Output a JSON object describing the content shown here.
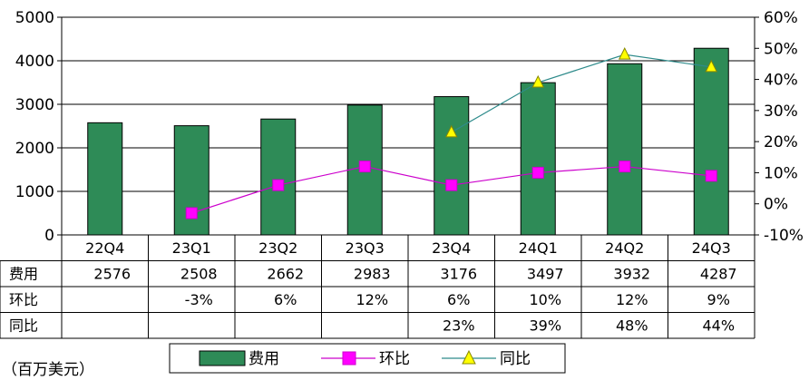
{
  "chart_data": {
    "type": "bar",
    "categories": [
      "22Q4",
      "23Q1",
      "23Q2",
      "23Q3",
      "23Q4",
      "24Q1",
      "24Q2",
      "24Q3"
    ],
    "series": [
      {
        "name": "费用",
        "kind": "bar",
        "axis": "left",
        "color": "#2e8b57",
        "values": [
          2576,
          2508,
          2662,
          2983,
          3176,
          3497,
          3932,
          4287
        ]
      },
      {
        "name": "环比",
        "kind": "line",
        "axis": "right",
        "color": "#cc00cc",
        "marker": "square",
        "marker_color": "#ff00ff",
        "values": [
          null,
          -3,
          6,
          12,
          6,
          10,
          12,
          9
        ]
      },
      {
        "name": "同比",
        "kind": "line",
        "axis": "right",
        "color": "#2e8b8b",
        "marker": "triangle",
        "marker_color": "#ffff00",
        "values": [
          null,
          null,
          null,
          null,
          23,
          39,
          48,
          44
        ]
      }
    ],
    "ylim_left": [
      0,
      5000
    ],
    "left_ticks": [
      "0",
      "1000",
      "2000",
      "3000",
      "4000",
      "5000"
    ],
    "ylim_right": [
      -10,
      60
    ],
    "right_ticks": [
      "-10%",
      "0%",
      "10%",
      "20%",
      "30%",
      "40%",
      "50%",
      "60%"
    ],
    "grid": true,
    "legend_position": "bottom",
    "table": {
      "rows": [
        {
          "label": "费用",
          "cells": [
            "2576",
            "2508",
            "2662",
            "2983",
            "3176",
            "3497",
            "3932",
            "4287"
          ]
        },
        {
          "label": "环比",
          "cells": [
            "",
            "-3%",
            "6%",
            "12%",
            "6%",
            "10%",
            "12%",
            "9%"
          ]
        },
        {
          "label": "同比",
          "cells": [
            "",
            "",
            "",
            "",
            "23%",
            "39%",
            "48%",
            "44%"
          ]
        }
      ]
    },
    "unit_note": "（百万美元）"
  }
}
